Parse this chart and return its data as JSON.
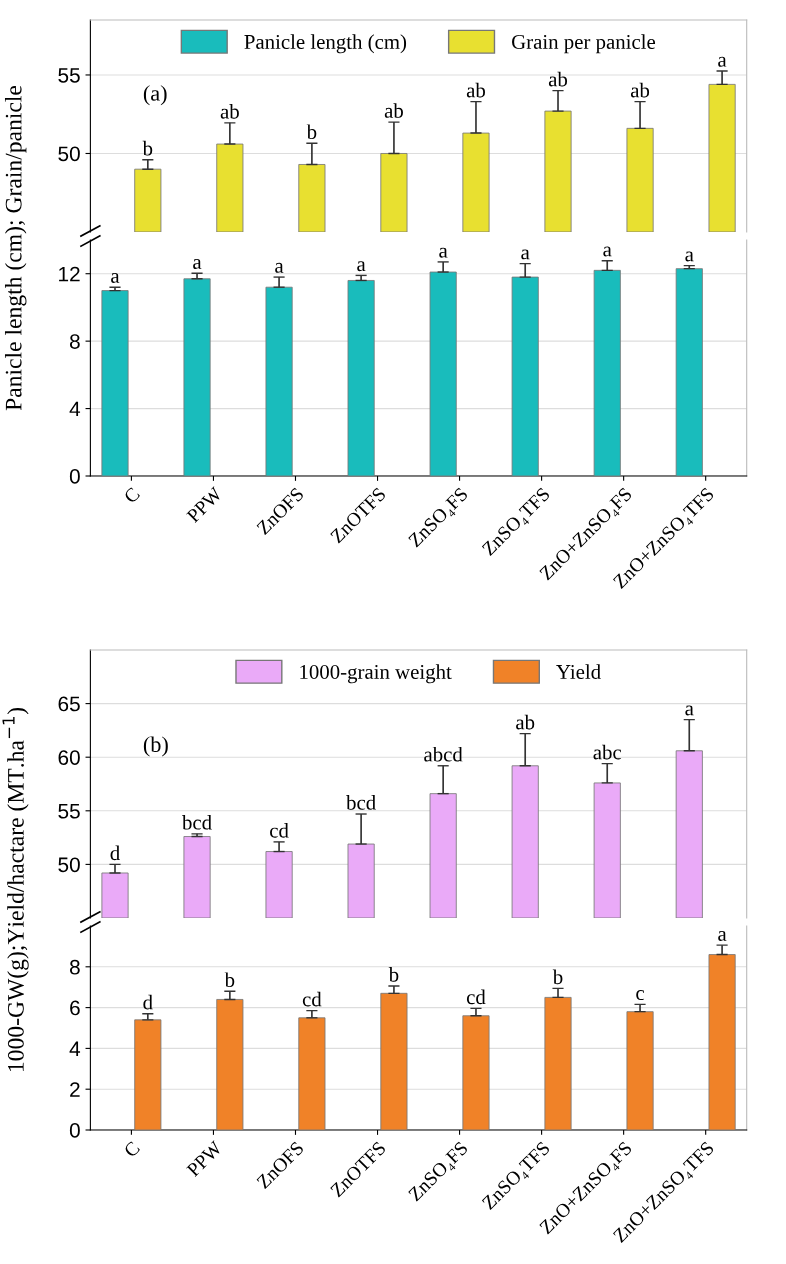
{
  "chart_data": [
    {
      "type": "bar",
      "categories": [
        null,
        null,
        null,
        null,
        null,
        null,
        null,
        null
      ],
      "ylim": [
        45,
        58.5
      ],
      "yticks": [
        50,
        55
      ],
      "tick_labels": "y",
      "grid": "y",
      "legend": "top",
      "annotations": [
        "(a)"
      ],
      "series": [
        {
          "name": "Panicle length (cm)",
          "color": "#19bcbc",
          "values": [
            null,
            null,
            null,
            null,
            null,
            null,
            null,
            null
          ]
        },
        {
          "name": "Grain per panicle",
          "color": "#e8e030",
          "values": [
            49.0,
            50.6,
            49.3,
            50.0,
            51.3,
            52.7,
            51.6,
            54.4
          ],
          "errors": [
            0.6,
            1.35,
            1.35,
            2.0,
            2.0,
            1.3,
            1.7,
            0.85
          ],
          "value_labels": [
            "b",
            "ab",
            "b",
            "ab",
            "ab",
            "ab",
            "ab",
            "a"
          ]
        }
      ]
    },
    {
      "type": "bar",
      "categories": [
        "C",
        "PPW",
        "ZnOFS",
        "ZnOTFS",
        "ZnSO₄FS",
        "ZnSO₄TFS",
        "ZnO+ZnSO₄FS",
        "ZnO+ZnSO₄TFS"
      ],
      "ylim": [
        0,
        14
      ],
      "yticks": [
        0,
        4,
        8,
        12
      ],
      "grid": "y",
      "ylabel": "Panicle length (cm); Grain/panicle",
      "series": [
        {
          "color": "#19bcbc",
          "values": [
            11.0,
            11.7,
            11.2,
            11.6,
            12.1,
            11.8,
            12.2,
            12.3
          ],
          "errors": [
            0.2,
            0.33,
            0.6,
            0.3,
            0.6,
            0.8,
            0.57,
            0.18
          ],
          "value_labels": [
            "a",
            "a",
            "a",
            "a",
            "a",
            "a",
            "a",
            "a"
          ]
        },
        {
          "values": [
            null,
            null,
            null,
            null,
            null,
            null,
            null,
            null
          ]
        }
      ]
    },
    {
      "type": "bar",
      "categories": [
        null,
        null,
        null,
        null,
        null,
        null,
        null,
        null
      ],
      "ylim": [
        45,
        70
      ],
      "yticks": [
        50,
        55,
        60,
        65
      ],
      "tick_labels": "y",
      "grid": "y",
      "legend": "top",
      "annotations": [
        "(b)"
      ],
      "series": [
        {
          "name": "1000-grain weight",
          "color": "#eaaaf8",
          "values": [
            49.2,
            52.6,
            51.2,
            51.9,
            56.6,
            59.2,
            57.6,
            60.6
          ],
          "errors": [
            0.8,
            0.25,
            0.9,
            2.8,
            2.6,
            3.0,
            1.8,
            2.9
          ],
          "value_labels": [
            "d",
            "bcd",
            "cd",
            "bcd",
            "abcd",
            "ab",
            "abc",
            "a"
          ]
        },
        {
          "name": "Yield",
          "color": "#f08228",
          "values": [
            null,
            null,
            null,
            null,
            null,
            null,
            null,
            null
          ]
        }
      ]
    },
    {
      "type": "bar",
      "categories": [
        "C",
        "PPW",
        "ZnOFS",
        "ZnOTFS",
        "ZnSO₄FS",
        "ZnSO₄TFS",
        "ZnO+ZnSO₄FS",
        "ZnO+ZnSO₄TFS"
      ],
      "ylim": [
        0,
        10
      ],
      "yticks": [
        0,
        2,
        4,
        6,
        8
      ],
      "grid": "y",
      "ylabel": "1000-GW(g);Yield/hactare (MT.ha$^{−1}$)",
      "series": [
        {
          "values": [
            null,
            null,
            null,
            null,
            null,
            null,
            null,
            null
          ]
        },
        {
          "color": "#f08228",
          "values": [
            5.4,
            6.4,
            5.5,
            6.7,
            5.6,
            6.5,
            5.8,
            8.6
          ],
          "errors": [
            0.3,
            0.4,
            0.35,
            0.36,
            0.36,
            0.44,
            0.36,
            0.46
          ],
          "value_labels": [
            "d",
            "b",
            "cd",
            "b",
            "cd",
            "b",
            "c",
            "a"
          ]
        }
      ]
    }
  ]
}
